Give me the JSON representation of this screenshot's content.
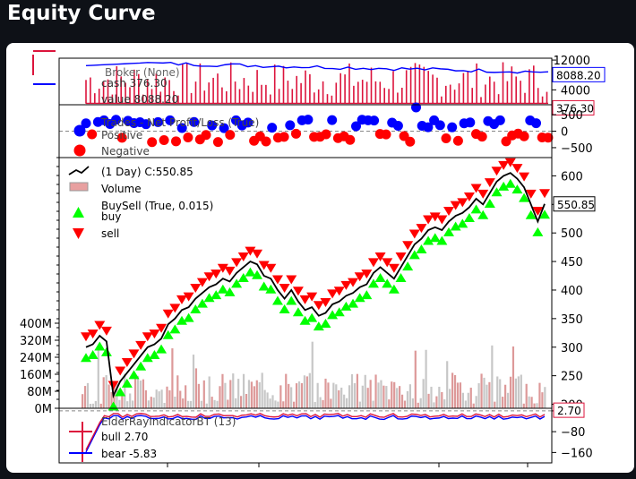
{
  "page": {
    "title": "Equity Curve"
  },
  "chart_data": [
    {
      "panel": "broker",
      "type": "line",
      "legend_title": "Broker (None)",
      "series": [
        {
          "name": "cash 376.30",
          "color": "#dc143c",
          "last": 376.3,
          "last_label": "376.30"
        },
        {
          "name": "value 8088.20",
          "color": "#0000ff",
          "last": 8088.2,
          "last_label": "8088.20"
        }
      ],
      "y_ticks": [
        4000,
        8000,
        12000
      ],
      "y_tick_labels": [
        "4000",
        "8000",
        "12000"
      ],
      "ylim": [
        0,
        12500
      ]
    },
    {
      "panel": "trades",
      "type": "scatter",
      "legend_title": "Trades - Net Profit/Loss (True)",
      "series": [
        {
          "name": "Positive",
          "color": "#0000ff"
        },
        {
          "name": "Negative",
          "color": "#ff0000"
        }
      ],
      "y_ticks": [
        500,
        0,
        -500
      ],
      "y_tick_labels": [
        "500",
        "0",
        "−500"
      ],
      "ylim": [
        -800,
        800
      ]
    },
    {
      "panel": "price",
      "type": "line",
      "legend": [
        {
          "name": "(1 Day) C:550.85",
          "color": "#000000"
        },
        {
          "name": "Volume",
          "color": "#e8a0a0"
        },
        {
          "name": "BuySell (True, 0.015)",
          "color": "#000000"
        },
        {
          "name": "buy",
          "color": "#00ff00"
        },
        {
          "name": "sell",
          "color": "#ff0000"
        }
      ],
      "close_points": [
        [
          0,
          300
        ],
        [
          1,
          305
        ],
        [
          2,
          320
        ],
        [
          3,
          310
        ],
        [
          4,
          215
        ],
        [
          5,
          240
        ],
        [
          6,
          255
        ],
        [
          7,
          270
        ],
        [
          8,
          285
        ],
        [
          9,
          300
        ],
        [
          10,
          305
        ],
        [
          11,
          315
        ],
        [
          12,
          340
        ],
        [
          13,
          350
        ],
        [
          14,
          365
        ],
        [
          15,
          370
        ],
        [
          16,
          385
        ],
        [
          17,
          395
        ],
        [
          18,
          405
        ],
        [
          19,
          410
        ],
        [
          20,
          420
        ],
        [
          21,
          415
        ],
        [
          22,
          430
        ],
        [
          23,
          440
        ],
        [
          24,
          450
        ],
        [
          25,
          445
        ],
        [
          26,
          425
        ],
        [
          27,
          420
        ],
        [
          28,
          400
        ],
        [
          29,
          385
        ],
        [
          30,
          400
        ],
        [
          31,
          380
        ],
        [
          32,
          365
        ],
        [
          33,
          370
        ],
        [
          34,
          355
        ],
        [
          35,
          360
        ],
        [
          36,
          375
        ],
        [
          37,
          380
        ],
        [
          38,
          390
        ],
        [
          39,
          395
        ],
        [
          40,
          405
        ],
        [
          41,
          410
        ],
        [
          42,
          430
        ],
        [
          43,
          440
        ],
        [
          44,
          430
        ],
        [
          45,
          420
        ],
        [
          46,
          440
        ],
        [
          47,
          460
        ],
        [
          48,
          480
        ],
        [
          49,
          490
        ],
        [
          50,
          505
        ],
        [
          51,
          510
        ],
        [
          52,
          505
        ],
        [
          53,
          520
        ],
        [
          54,
          530
        ],
        [
          55,
          535
        ],
        [
          56,
          545
        ],
        [
          57,
          560
        ],
        [
          58,
          550
        ],
        [
          59,
          570
        ],
        [
          60,
          590
        ],
        [
          61,
          600
        ],
        [
          62,
          605
        ],
        [
          63,
          595
        ],
        [
          64,
          580
        ],
        [
          65,
          550
        ],
        [
          66,
          520
        ],
        [
          67,
          550.85
        ]
      ],
      "x_range": [
        0,
        67
      ],
      "last_label": "550.85",
      "y_ticks": [
        200,
        250,
        300,
        350,
        400,
        450,
        500,
        550,
        600
      ],
      "y_tick_labels": [
        "200",
        "250",
        "300",
        "350",
        "400",
        "450",
        "500",
        "550",
        "600"
      ],
      "ylim": [
        193,
        632
      ],
      "volume_ticks": [
        "0M",
        "80M",
        "160M",
        "240M",
        "320M",
        "400M"
      ]
    },
    {
      "panel": "elder",
      "type": "line",
      "legend_title": "ElderRayIndicatorBT (13)",
      "series": [
        {
          "name": "bull 2.70",
          "color": "#dc143c",
          "last": 2.7,
          "last_label": "2.70"
        },
        {
          "name": "bear -5.83",
          "color": "#0000ff",
          "last": -5.83
        }
      ],
      "y_ticks": [
        0,
        -80,
        -160
      ],
      "y_tick_labels": [
        "0",
        "−80",
        "−160"
      ],
      "ylim": [
        -200,
        10
      ]
    }
  ]
}
